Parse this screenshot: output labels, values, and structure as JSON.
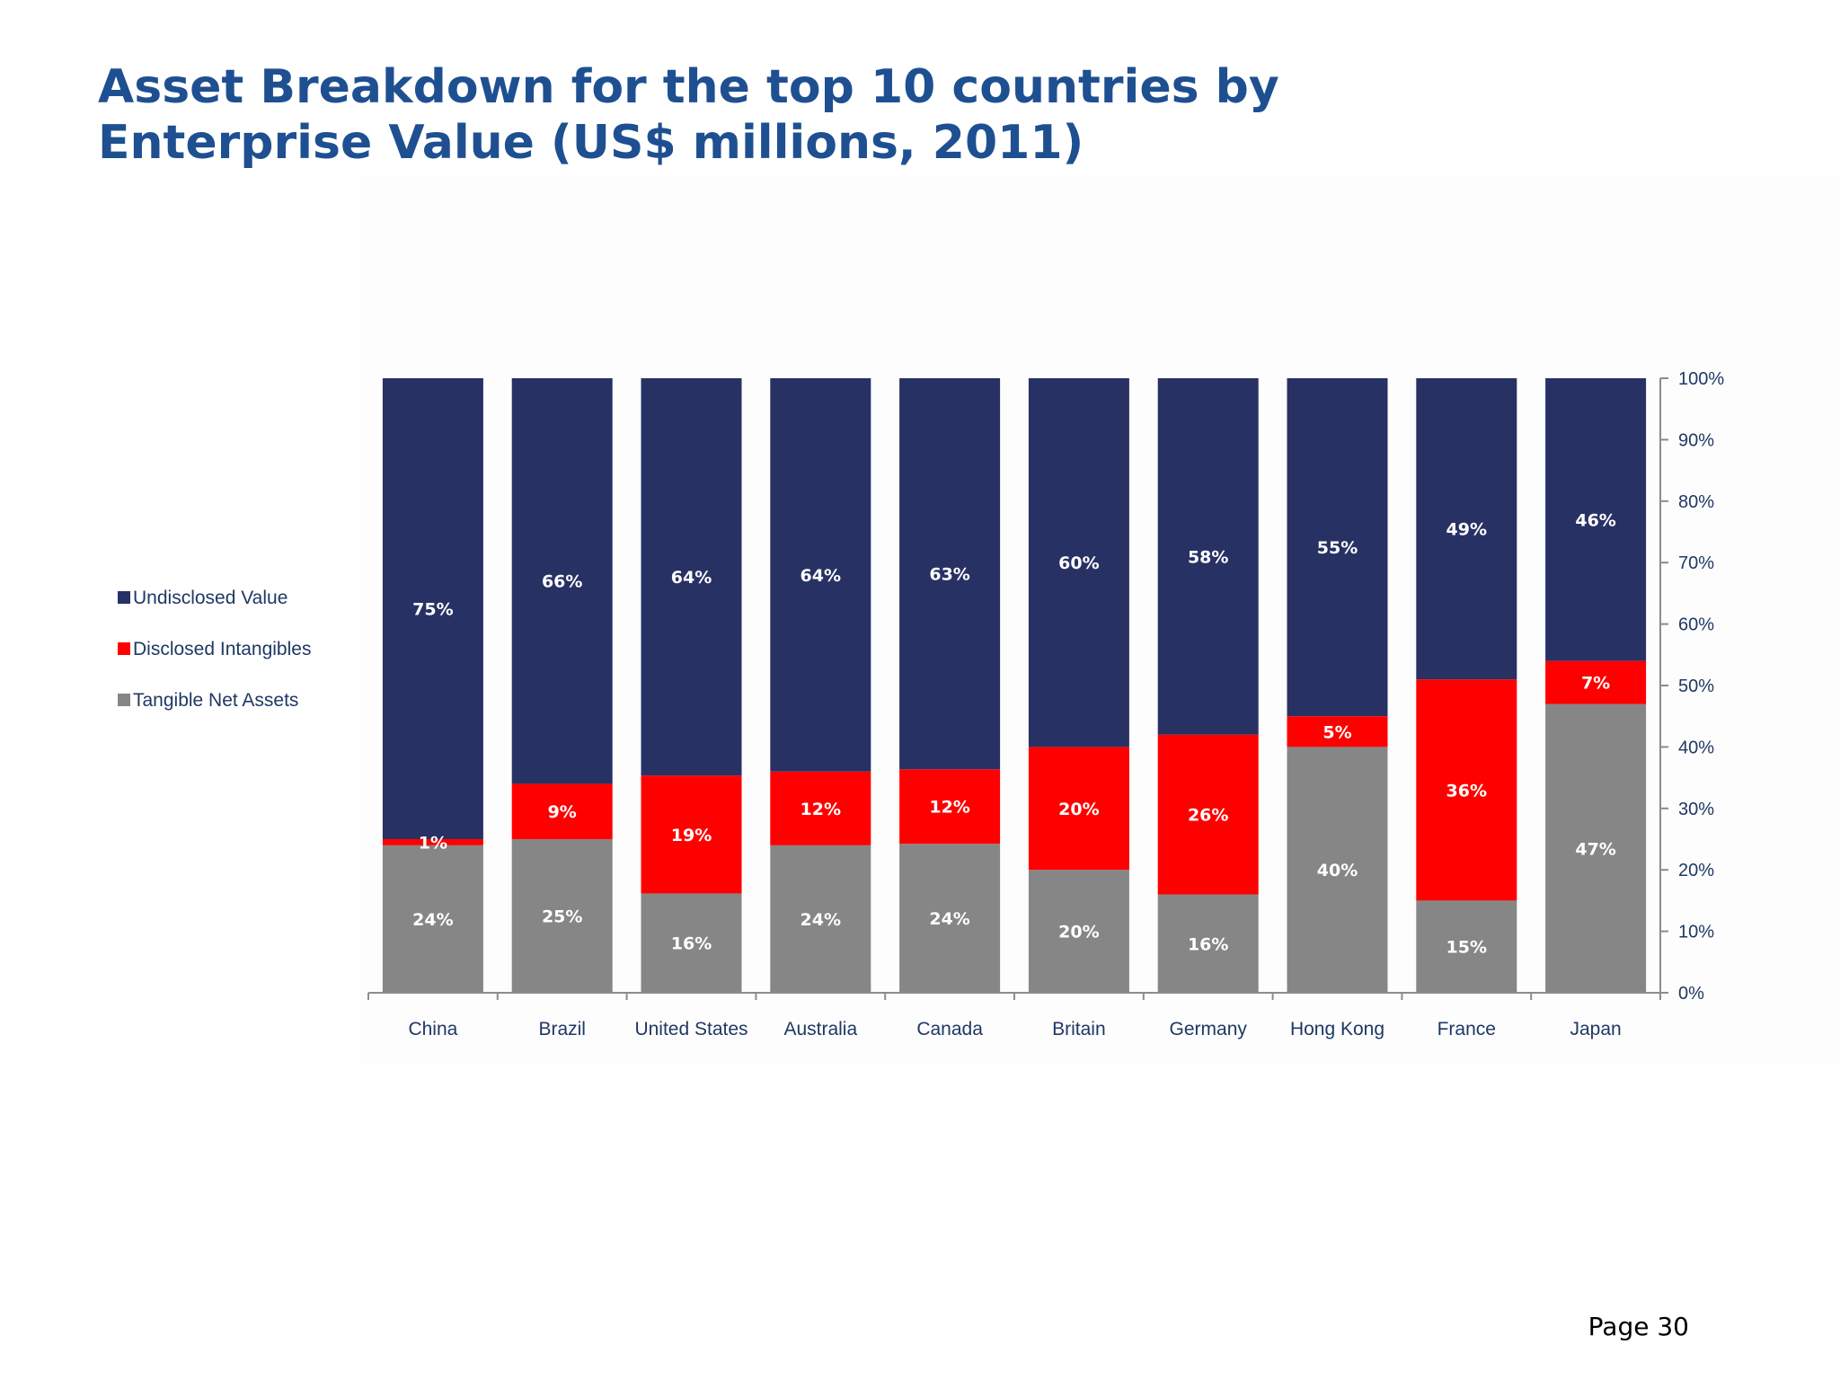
{
  "slide": {
    "title_line1": "Asset Breakdown for the top 10 countries by",
    "title_line2": "Enterprise Value (US$ millions, 2011)",
    "page": "Page 30"
  },
  "chart_data": {
    "type": "bar",
    "stacked": true,
    "percent_stacked": true,
    "categories": [
      "China",
      "Brazil",
      "United States",
      "Australia",
      "Canada",
      "Britain",
      "Germany",
      "Hong Kong",
      "France",
      "Japan"
    ],
    "series": [
      {
        "name": "Tangible Net Assets",
        "color": "#868686",
        "values": [
          24,
          25,
          16,
          24,
          24,
          20,
          16,
          40,
          15,
          47
        ]
      },
      {
        "name": "Disclosed Intangibles",
        "color": "#ff0000",
        "values": [
          1,
          9,
          19,
          12,
          12,
          20,
          26,
          5,
          36,
          7
        ]
      },
      {
        "name": "Undisclosed Value",
        "color": "#283164",
        "values": [
          75,
          66,
          64,
          64,
          63,
          60,
          58,
          55,
          49,
          46
        ]
      }
    ],
    "legend_order": [
      "Undisclosed Value",
      "Disclosed Intangibles",
      "Tangible Net Assets"
    ],
    "legend_position": "left",
    "y_axis_position": "right",
    "ylim": [
      0,
      100
    ],
    "yticks": [
      "0%",
      "10%",
      "20%",
      "30%",
      "40%",
      "50%",
      "60%",
      "70%",
      "80%",
      "90%",
      "100%"
    ],
    "grid": false
  }
}
